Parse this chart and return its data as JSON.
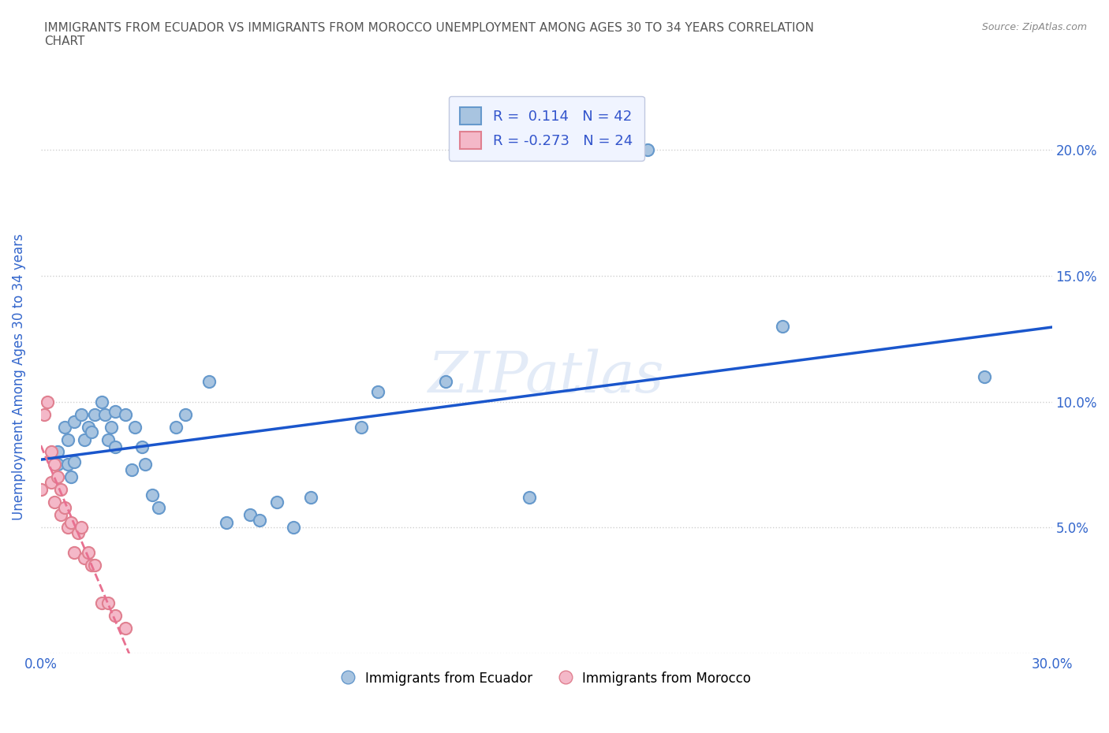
{
  "title": "IMMIGRANTS FROM ECUADOR VS IMMIGRANTS FROM MOROCCO UNEMPLOYMENT AMONG AGES 30 TO 34 YEARS CORRELATION\nCHART",
  "source": "Source: ZipAtlas.com",
  "xlabel": "",
  "ylabel": "Unemployment Among Ages 30 to 34 years",
  "xlim": [
    0.0,
    0.3
  ],
  "ylim": [
    0.0,
    0.22
  ],
  "xticks": [
    0.0,
    0.05,
    0.1,
    0.15,
    0.2,
    0.25,
    0.3
  ],
  "yticks": [
    0.0,
    0.05,
    0.1,
    0.15,
    0.2
  ],
  "xtick_labels": [
    "0.0%",
    "",
    "",
    "",
    "",
    "",
    "30.0%"
  ],
  "ytick_labels": [
    "",
    "5.0%",
    "10.0%",
    "15.0%",
    "20.0%"
  ],
  "background_color": "#ffffff",
  "watermark": "ZIPatlas",
  "ecuador_color": "#a8c4e0",
  "morocco_color": "#f4b8c8",
  "ecuador_edge": "#6699cc",
  "morocco_edge": "#e08090",
  "trendline_ecuador_color": "#1a56cc",
  "trendline_morocco_color": "#e87090",
  "trendline_morocco_dashed": true,
  "R_ecuador": 0.114,
  "N_ecuador": 42,
  "R_morocco": -0.273,
  "N_morocco": 24,
  "ecuador_x": [
    0.005,
    0.005,
    0.007,
    0.008,
    0.008,
    0.009,
    0.01,
    0.01,
    0.012,
    0.013,
    0.014,
    0.015,
    0.016,
    0.018,
    0.019,
    0.02,
    0.021,
    0.022,
    0.022,
    0.025,
    0.027,
    0.028,
    0.03,
    0.031,
    0.033,
    0.035,
    0.04,
    0.043,
    0.05,
    0.055,
    0.062,
    0.065,
    0.07,
    0.075,
    0.08,
    0.095,
    0.1,
    0.12,
    0.145,
    0.18,
    0.22,
    0.28
  ],
  "ecuador_y": [
    0.075,
    0.08,
    0.09,
    0.075,
    0.085,
    0.07,
    0.092,
    0.076,
    0.095,
    0.085,
    0.09,
    0.088,
    0.095,
    0.1,
    0.095,
    0.085,
    0.09,
    0.082,
    0.096,
    0.095,
    0.073,
    0.09,
    0.082,
    0.075,
    0.063,
    0.058,
    0.09,
    0.095,
    0.108,
    0.052,
    0.055,
    0.053,
    0.06,
    0.05,
    0.062,
    0.09,
    0.104,
    0.108,
    0.062,
    0.2,
    0.13,
    0.11
  ],
  "morocco_x": [
    0.0,
    0.001,
    0.002,
    0.003,
    0.003,
    0.004,
    0.004,
    0.005,
    0.006,
    0.006,
    0.007,
    0.008,
    0.009,
    0.01,
    0.011,
    0.012,
    0.013,
    0.014,
    0.015,
    0.016,
    0.018,
    0.02,
    0.022,
    0.025
  ],
  "morocco_y": [
    0.065,
    0.095,
    0.1,
    0.08,
    0.068,
    0.075,
    0.06,
    0.07,
    0.055,
    0.065,
    0.058,
    0.05,
    0.052,
    0.04,
    0.048,
    0.05,
    0.038,
    0.04,
    0.035,
    0.035,
    0.02,
    0.02,
    0.015,
    0.01
  ],
  "legend_box_color": "#f0f4ff",
  "legend_border_color": "#c0c8e0",
  "grid_color": "#d0d0d0",
  "title_color": "#444444",
  "axis_label_color": "#3366cc",
  "tick_label_color": "#3366cc"
}
